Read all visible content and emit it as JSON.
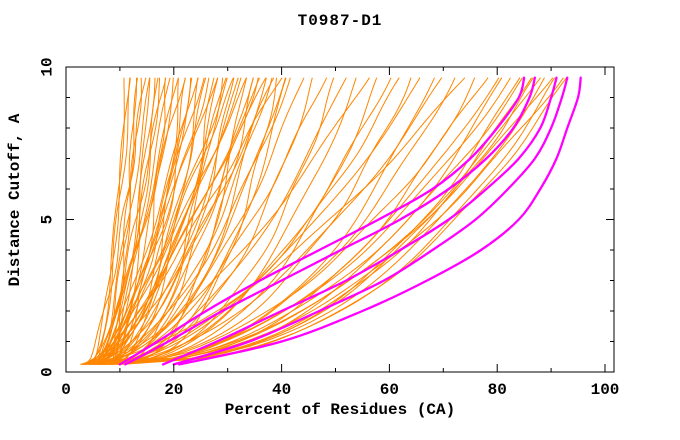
{
  "chart": {
    "title": "T0987-D1",
    "xlabel": "Percent of Residues (CA)",
    "ylabel": "Distance Cutoff, A"
  },
  "chart_data": {
    "type": "line",
    "title": "T0987-D1",
    "xlabel": "Percent of Residues (CA)",
    "ylabel": "Distance Cutoff, A",
    "xlim": [
      0,
      101.7
    ],
    "ylim": [
      0,
      10
    ],
    "xticks": [
      0,
      20,
      40,
      60,
      80,
      100
    ],
    "xticks_minor": [
      10,
      30,
      50,
      70,
      90
    ],
    "yticks": [
      0,
      5,
      10
    ],
    "yticks_minor": [
      1,
      2,
      3,
      4,
      6,
      7,
      8,
      9
    ],
    "grid": false,
    "legend": "none",
    "colors": {
      "models": "#ff8600",
      "highlight": "#ff00ff",
      "axis": "#000000",
      "background": "#ffffff"
    },
    "y_levels": [
      0.25,
      1,
      2,
      3,
      4,
      5,
      6,
      7,
      8,
      9,
      9.65
    ],
    "series": [
      {
        "name": "highlighted-models",
        "color": "#ff00ff",
        "width": 2.3,
        "note": "x percent sampled at y_levels for each magenta curve",
        "curves": [
          [
            10,
            17,
            26,
            36,
            47,
            58,
            68,
            75,
            80,
            84,
            85
          ],
          [
            11,
            19,
            29,
            40,
            51,
            62,
            71,
            78,
            83,
            86,
            87
          ],
          [
            18,
            28,
            40,
            52,
            62,
            71,
            78,
            84,
            88,
            90,
            91
          ],
          [
            20,
            34,
            47,
            59,
            68,
            76,
            82,
            87,
            90,
            92,
            93
          ],
          [
            21,
            40,
            55,
            67,
            77,
            84,
            88,
            91,
            93,
            95,
            95.5
          ]
        ]
      },
      {
        "name": "models",
        "color": "#ff8600",
        "width": 1,
        "curve_model": "x(y) = x0 + (xt - x0) * ((y - 0.25) / 9.4) ^ p for y in [0.25, 9.65]",
        "curves_param": [
          [
            3,
            11,
            0.35
          ],
          [
            4.5,
            11.6,
            0.55
          ],
          [
            6,
            12.2,
            0.8
          ],
          [
            7.5,
            12.8,
            0.4
          ],
          [
            9,
            13.4,
            1.0
          ],
          [
            5,
            14,
            0.5
          ],
          [
            3.5,
            14.6,
            0.65
          ],
          [
            8,
            15.2,
            0.35
          ],
          [
            6.5,
            15.8,
            0.9
          ],
          [
            4,
            16.4,
            0.45
          ],
          [
            3,
            17,
            0.35
          ],
          [
            4.5,
            17.6,
            0.55
          ],
          [
            6,
            18.2,
            0.8
          ],
          [
            7.5,
            18.8,
            0.4
          ],
          [
            9,
            19.4,
            1.0
          ],
          [
            5,
            20,
            0.5
          ],
          [
            3.5,
            20.6,
            0.65
          ],
          [
            8,
            21.2,
            0.35
          ],
          [
            6.5,
            21.8,
            0.9
          ],
          [
            4,
            22.4,
            0.45
          ],
          [
            3,
            23,
            0.35
          ],
          [
            4.5,
            23.6,
            0.55
          ],
          [
            6,
            24.2,
            0.8
          ],
          [
            7.5,
            24.8,
            0.4
          ],
          [
            9,
            25.4,
            1.0
          ],
          [
            5,
            26,
            0.5
          ],
          [
            3.5,
            26.6,
            0.65
          ],
          [
            8,
            27.2,
            0.35
          ],
          [
            6.5,
            27.8,
            0.9
          ],
          [
            4,
            28.4,
            0.45
          ],
          [
            3,
            29,
            0.35
          ],
          [
            4.5,
            29.6,
            0.55
          ],
          [
            6,
            30.2,
            0.8
          ],
          [
            7.5,
            30.8,
            0.4
          ],
          [
            9,
            31.4,
            1.0
          ],
          [
            5,
            32,
            0.5
          ],
          [
            3.5,
            32.6,
            0.65
          ],
          [
            8,
            33.2,
            0.35
          ],
          [
            6.5,
            33.8,
            0.9
          ],
          [
            4,
            34.4,
            0.45
          ],
          [
            3,
            35,
            0.35
          ],
          [
            4.5,
            35.6,
            0.55
          ],
          [
            6,
            36.2,
            0.8
          ],
          [
            7.5,
            36.8,
            0.4
          ],
          [
            9,
            37.4,
            1.0
          ],
          [
            5,
            38,
            0.5
          ],
          [
            3.5,
            38.6,
            0.65
          ],
          [
            8,
            39.2,
            0.35
          ],
          [
            6.5,
            39.8,
            0.9
          ],
          [
            4,
            40.4,
            0.45
          ],
          [
            3,
            41,
            0.35
          ],
          [
            4.5,
            41.6,
            0.55
          ],
          [
            4,
            44,
            0.5
          ],
          [
            6,
            46,
            0.42
          ],
          [
            8,
            48,
            0.6
          ],
          [
            5,
            50,
            0.38
          ],
          [
            7,
            52,
            0.55
          ],
          [
            9,
            54,
            0.45
          ],
          [
            4.5,
            56,
            0.65
          ],
          [
            6.5,
            58,
            0.4
          ],
          [
            8.5,
            60,
            0.52
          ],
          [
            4,
            62,
            0.5
          ],
          [
            6,
            64,
            0.42
          ],
          [
            8,
            66,
            0.6
          ],
          [
            5,
            68,
            0.38
          ],
          [
            7,
            70,
            0.55
          ],
          [
            9,
            72,
            0.45
          ],
          [
            4.5,
            74,
            0.65
          ],
          [
            6.5,
            76,
            0.4
          ],
          [
            8.5,
            78,
            0.52
          ],
          [
            5,
            80,
            0.45
          ],
          [
            7,
            81,
            0.4
          ],
          [
            9,
            82.5,
            0.5
          ],
          [
            6,
            84,
            0.38
          ],
          [
            8,
            85,
            0.48
          ],
          [
            10,
            86,
            0.42
          ],
          [
            5.5,
            87,
            0.4
          ],
          [
            5,
            88,
            0.45
          ],
          [
            7,
            89,
            0.4
          ],
          [
            9,
            90,
            0.5
          ],
          [
            6,
            91,
            0.38
          ],
          [
            8,
            92,
            0.48
          ],
          [
            10,
            93,
            0.42
          ]
        ]
      }
    ]
  }
}
